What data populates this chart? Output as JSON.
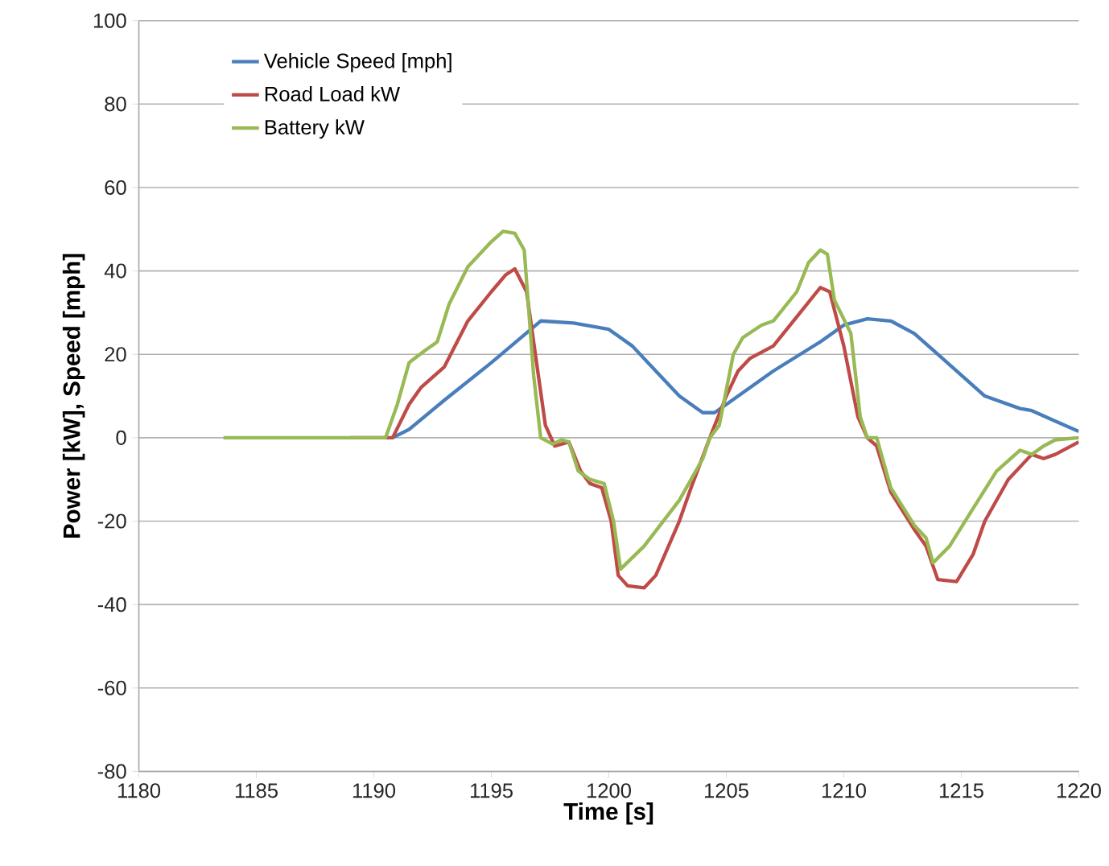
{
  "chart_data": {
    "type": "line",
    "xlabel": "Time [s]",
    "ylabel": "Power [kW],  Speed [mph]",
    "xlim": [
      1180,
      1220
    ],
    "ylim": [
      -80,
      100
    ],
    "xticks": [
      1180,
      1185,
      1190,
      1195,
      1200,
      1205,
      1210,
      1215,
      1220
    ],
    "yticks": [
      -80,
      -60,
      -40,
      -20,
      0,
      20,
      40,
      60,
      80,
      100
    ],
    "grid": "y",
    "legend": "top left",
    "marker": "none",
    "line_style": "solid",
    "series": [
      {
        "name": "Vehicle Speed [mph]",
        "color": "#4a7ebb",
        "x": [
          1190.8,
          1191.5,
          1193,
          1195,
          1197.1,
          1198.5,
          1200,
          1201,
          1202,
          1203,
          1204,
          1204.5,
          1205,
          1207,
          1209,
          1210,
          1211,
          1212,
          1213,
          1214,
          1215,
          1216,
          1217.5,
          1218,
          1219,
          1220
        ],
        "values": [
          0,
          2,
          9,
          18,
          28,
          27.5,
          26,
          22,
          16,
          10,
          6,
          6,
          8,
          16,
          23,
          27,
          28.5,
          28,
          25,
          20,
          15,
          10,
          7,
          6.5,
          4,
          1.5
        ]
      },
      {
        "name": "Road Load kW",
        "color": "#be4b48",
        "x": [
          1189,
          1190.8,
          1191.5,
          1192,
          1193,
          1194,
          1195,
          1195.6,
          1196,
          1196.5,
          1197,
          1197.3,
          1197.7,
          1198.3,
          1198.8,
          1199.2,
          1199.7,
          1200.1,
          1200.4,
          1200.8,
          1201.5,
          1202,
          1203,
          1203.5,
          1204.3,
          1205,
          1205.5,
          1206,
          1207,
          1208,
          1209,
          1209.4,
          1210,
          1210.6,
          1211,
          1211.4,
          1212,
          1213,
          1213.5,
          1214,
          1214.8,
          1215.5,
          1216,
          1217,
          1218,
          1218.5,
          1219,
          1220
        ],
        "values": [
          0,
          0,
          8,
          12,
          17,
          28,
          35,
          39,
          40.5,
          35,
          15,
          3,
          -2,
          -1,
          -8,
          -11,
          -12,
          -20,
          -33,
          -35.5,
          -36,
          -33,
          -20,
          -12,
          0,
          10,
          16,
          19,
          22,
          29,
          36,
          35,
          22,
          5,
          0,
          -2,
          -13,
          -22,
          -26,
          -34,
          -34.5,
          -28,
          -20,
          -10,
          -4,
          -5,
          -4,
          -1
        ]
      },
      {
        "name": "Battery kW",
        "color": "#98b954",
        "x": [
          1183.6,
          1186,
          1189,
          1190.5,
          1191,
          1191.5,
          1192.2,
          1192.7,
          1193.2,
          1194,
          1195,
          1195.5,
          1196,
          1196.4,
          1196.8,
          1197.1,
          1197.6,
          1198,
          1198.3,
          1198.7,
          1199.2,
          1199.8,
          1200.2,
          1200.5,
          1201.5,
          1203,
          1204,
          1204.3,
          1204.7,
          1205.3,
          1205.7,
          1206.5,
          1207,
          1208,
          1208.5,
          1209,
          1209.3,
          1209.6,
          1210.3,
          1210.7,
          1211,
          1211.4,
          1212,
          1213,
          1213.5,
          1213.8,
          1214.5,
          1215.5,
          1216.5,
          1217.5,
          1218,
          1218.5,
          1219,
          1220
        ],
        "values": [
          0,
          0,
          0,
          0,
          8,
          18,
          21,
          23,
          32,
          41,
          47,
          49.5,
          49,
          45,
          15,
          0,
          -1.5,
          -0.5,
          -1,
          -8,
          -10,
          -11,
          -20,
          -31.5,
          -26,
          -15,
          -5,
          0,
          3,
          20,
          24,
          27,
          28,
          35,
          42,
          45,
          44,
          33,
          25,
          5,
          0,
          0,
          -12,
          -21,
          -24,
          -30,
          -26,
          -17,
          -8,
          -3,
          -4,
          -2,
          -0.5,
          0
        ]
      }
    ]
  }
}
